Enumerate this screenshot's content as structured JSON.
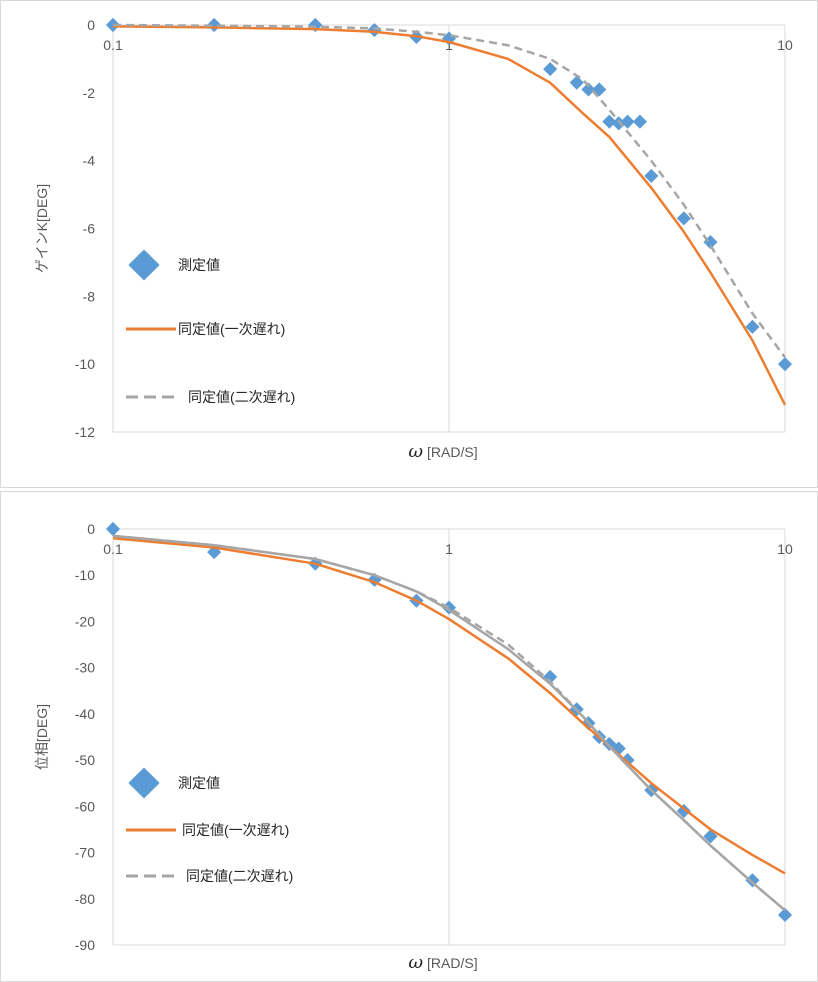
{
  "chart_data": [
    {
      "type": "line",
      "xscale": "log",
      "xlim": [
        0.1,
        10
      ],
      "ylim": [
        -12,
        0
      ],
      "yticks": [
        0,
        -2,
        -4,
        -6,
        -8,
        -10,
        -12
      ],
      "xticks": [
        0.1,
        1,
        10
      ],
      "xtick_labels": [
        "0.1",
        "1",
        "10"
      ],
      "xlabel_symbol": "ω",
      "xlabel_unit": "[RAD/S]",
      "ylabel": "ゲインK[DEG]",
      "grid": "vertical",
      "legend": "left",
      "series": [
        {
          "name": "測定値",
          "style": "marker",
          "color": "#5b9bd5",
          "x": [
            0.1,
            0.2,
            0.4,
            0.6,
            0.8,
            1.0,
            2.0,
            2.4,
            2.6,
            2.8,
            3.0,
            3.2,
            3.4,
            3.7,
            4.0,
            5.0,
            6.0,
            8.0,
            10.0
          ],
          "y": [
            0,
            0,
            0,
            -0.15,
            -0.35,
            -0.4,
            -1.3,
            -1.7,
            -1.9,
            -1.9,
            -2.85,
            -2.9,
            -2.85,
            -2.85,
            -4.45,
            -5.7,
            -6.4,
            -8.9,
            -10.0
          ]
        },
        {
          "name": "同定値(一次遅れ)",
          "style": "solid",
          "color": "#ed7d31",
          "x": [
            0.1,
            0.2,
            0.4,
            0.6,
            0.8,
            1.0,
            1.5,
            2.0,
            2.5,
            3.0,
            4.0,
            5.0,
            6.0,
            8.0,
            10.0
          ],
          "y": [
            -0.04,
            -0.07,
            -0.12,
            -0.2,
            -0.33,
            -0.5,
            -1.0,
            -1.7,
            -2.6,
            -3.3,
            -4.8,
            -6.1,
            -7.3,
            -9.3,
            -11.2
          ]
        },
        {
          "name": "同定値(二次遅れ)",
          "style": "dashed",
          "color": "#a6a6a6",
          "x": [
            0.1,
            0.2,
            0.4,
            0.6,
            0.8,
            1.0,
            1.5,
            2.0,
            2.5,
            3.0,
            4.0,
            5.0,
            6.0,
            8.0,
            10.0
          ],
          "y": [
            0,
            -0.02,
            -0.05,
            -0.1,
            -0.2,
            -0.3,
            -0.6,
            -1.0,
            -1.6,
            -2.5,
            -4.0,
            -5.3,
            -6.5,
            -8.5,
            -9.8
          ]
        }
      ]
    },
    {
      "type": "line",
      "xscale": "log",
      "xlim": [
        0.1,
        10
      ],
      "ylim": [
        -90,
        0
      ],
      "yticks": [
        0,
        -10,
        -20,
        -30,
        -40,
        -50,
        -60,
        -70,
        -80,
        -90
      ],
      "xticks": [
        0.1,
        1,
        10
      ],
      "xtick_labels": [
        "0.1",
        "1",
        "10"
      ],
      "xlabel_symbol": "ω",
      "xlabel_unit": "[RAD/S]",
      "ylabel": "位相[DEG]",
      "grid": "vertical",
      "legend": "left",
      "series": [
        {
          "name": "測定値",
          "style": "marker",
          "color": "#5b9bd5",
          "x": [
            0.1,
            0.2,
            0.4,
            0.6,
            0.8,
            1.0,
            2.0,
            2.4,
            2.6,
            2.8,
            3.0,
            3.2,
            3.4,
            4.0,
            5.0,
            6.0,
            8.0,
            10.0
          ],
          "y": [
            0,
            -5,
            -7.5,
            -11,
            -15.5,
            -17,
            -32,
            -39,
            -42,
            -45,
            -46.5,
            -47.5,
            -50,
            -56.5,
            -61,
            -66.5,
            -76,
            -83.5
          ]
        },
        {
          "name": "同定値(一次遅れ)",
          "style": "solid",
          "color": "#ed7d31",
          "x": [
            0.1,
            0.2,
            0.4,
            0.6,
            0.8,
            1.0,
            1.5,
            2.0,
            2.5,
            3.0,
            4.0,
            5.0,
            6.0,
            8.0,
            10.0
          ],
          "y": [
            -2,
            -4,
            -7.5,
            -11.5,
            -15.5,
            -19.5,
            -28,
            -35.5,
            -42,
            -47,
            -55,
            -60.5,
            -65,
            -70.5,
            -74.5
          ]
        },
        {
          "name": "同定値(二次遅れ)",
          "style": "dashed",
          "color": "#a6a6a6",
          "x": [
            0.1,
            0.2,
            0.4,
            0.6,
            0.8,
            1.0,
            1.5,
            2.0,
            2.5,
            3.0,
            4.0,
            5.0,
            6.0,
            8.0,
            10.0
          ],
          "y": [
            -1.5,
            -3.5,
            -6.5,
            -10,
            -13.5,
            -17,
            -25,
            -33,
            -40.5,
            -47,
            -56.5,
            -63,
            -68.5,
            -76.5,
            -82.5
          ]
        },
        {
          "name": "",
          "style": "solid",
          "color": "#a6a6a6",
          "x": [
            0.1,
            0.2,
            0.4,
            0.6,
            0.8,
            1.0,
            1.5,
            2.0,
            2.5,
            3.0,
            4.0,
            5.0,
            6.0,
            8.0,
            10.0
          ],
          "y": [
            -1.5,
            -3.5,
            -6.5,
            -10,
            -13.5,
            -17.5,
            -26,
            -33.5,
            -40.5,
            -47,
            -56.5,
            -63,
            -68.5,
            -76.5,
            -82.5
          ]
        }
      ]
    }
  ]
}
